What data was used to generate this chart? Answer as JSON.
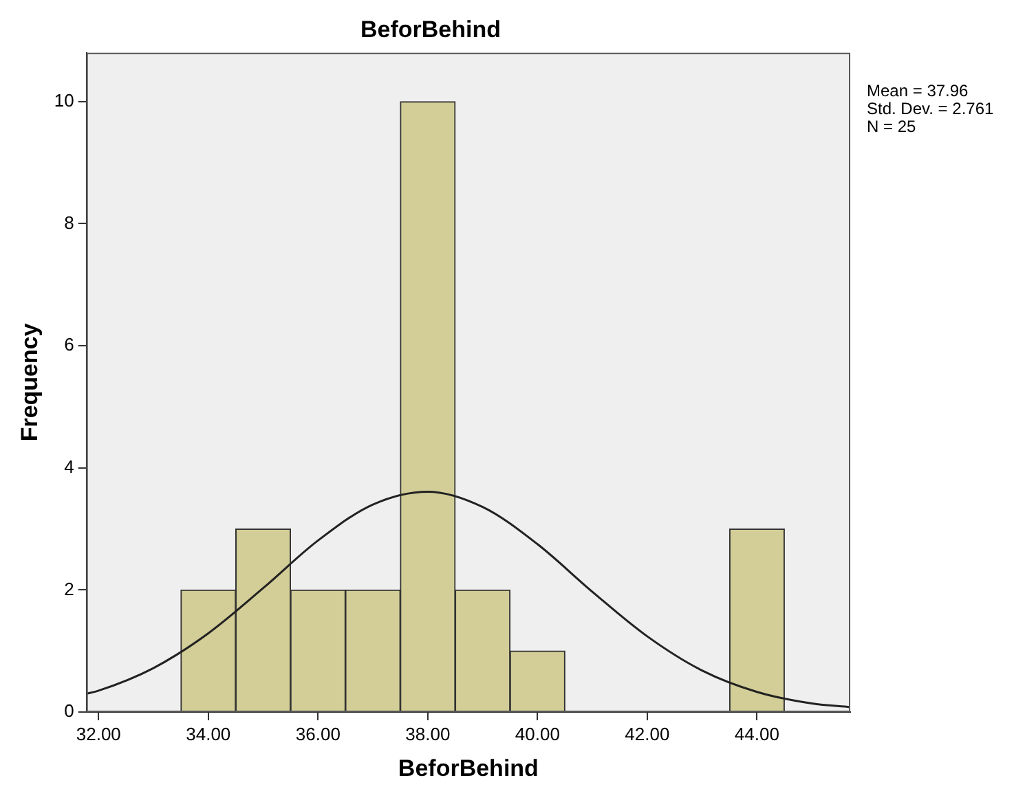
{
  "chart_data": {
    "type": "histogram",
    "title": "BeforBehind",
    "xlabel": "BeforBehind",
    "ylabel": "Frequency",
    "bins": [
      33.5,
      34.5,
      35.5,
      36.5,
      37.5,
      38.5,
      39.5,
      40.5,
      41.5,
      42.5,
      43.5,
      44.5
    ],
    "series": [
      {
        "color": "#d3ce97",
        "values": [
          2,
          3,
          2,
          2,
          10,
          2,
          1,
          0,
          0,
          0,
          3
        ]
      },
      {
        "type": "line",
        "color": "#222222",
        "x": [
          31.78,
          32,
          33,
          34,
          35,
          36,
          37,
          38,
          39,
          40,
          41,
          42,
          43,
          44,
          45,
          45.7
        ],
        "values": [
          0.3,
          0.35,
          0.72,
          1.29,
          2.03,
          2.81,
          3.4,
          3.61,
          3.36,
          2.75,
          1.97,
          1.24,
          0.68,
          0.33,
          0.14,
          0.08
        ]
      }
    ],
    "xlim": [
      31.78,
      45.7
    ],
    "xticks": [
      {
        "value": 32,
        "label": "32.00"
      },
      {
        "value": 34,
        "label": "34.00"
      },
      {
        "value": 36,
        "label": "36.00"
      },
      {
        "value": 38,
        "label": "38.00"
      },
      {
        "value": 40,
        "label": "40.00"
      },
      {
        "value": 42,
        "label": "42.00"
      },
      {
        "value": 44,
        "label": "44.00"
      }
    ],
    "ylim": [
      0,
      10.8
    ],
    "yticks": [
      0,
      2,
      4,
      6,
      8,
      10
    ],
    "grid": false,
    "legend": false,
    "marker": "none",
    "annotations": [
      "Mean = 37.96",
      "Std. Dev. = 2.761",
      "N = 25"
    ]
  }
}
